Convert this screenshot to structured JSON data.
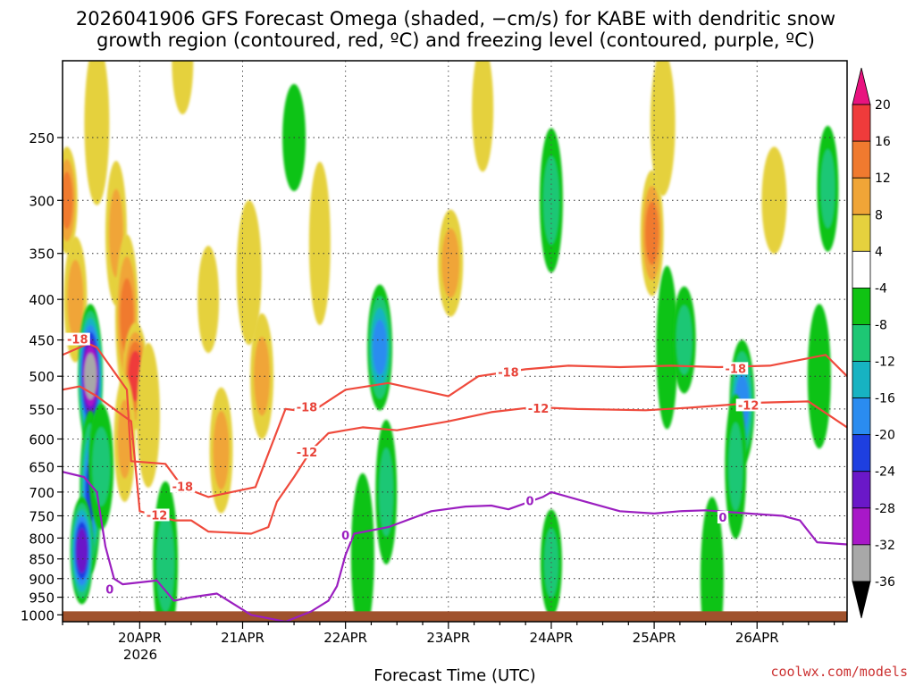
{
  "title_lines": [
    "2026041906 GFS Forecast Omega (shaded, −cm/s) for KABE with dendritic snow",
    "growth region (contoured, red, ºC) and freezing level (contoured, purple, ºC)"
  ],
  "credit": "coolwx.com/models",
  "chart_data": {
    "type": "heatmap",
    "title": "2026041906 GFS Forecast Omega (shaded, −cm/s) for KABE with dendritic snow growth region (contoured, red, ºC) and freezing level (contoured, purple, ºC)",
    "xlabel": "Forecast Time (UTC)",
    "ylabel": "",
    "x_tick_labels": [
      "20APR",
      "21APR",
      "22APR",
      "23APR",
      "24APR",
      "25APR",
      "26APR"
    ],
    "x_year_label": "2026",
    "x_tick_hours": [
      18,
      42,
      66,
      90,
      114,
      138,
      162
    ],
    "x_range_hours": [
      0,
      183
    ],
    "y_ticks_hpa": [
      250,
      300,
      350,
      400,
      450,
      500,
      550,
      600,
      650,
      700,
      750,
      800,
      850,
      900,
      950,
      1000
    ],
    "y_tick_labels": [
      "250",
      "300",
      "350",
      "400",
      "450",
      "500",
      "550",
      "600",
      "650",
      "700",
      "750",
      "800",
      "850",
      "900",
      "950",
      "1000"
    ],
    "y_range_hpa": [
      200,
      1020
    ],
    "colorbar": {
      "tick_labels": [
        "20",
        "16",
        "12",
        "8",
        "4",
        "-4",
        "-8",
        "-12",
        "-16",
        "-20",
        "-24",
        "-28",
        "-32",
        "-36"
      ],
      "bins": [
        {
          "range": ">20",
          "color": "#e8137f"
        },
        {
          "range": "16-20",
          "color": "#ef3b3b"
        },
        {
          "range": "12-16",
          "color": "#f07a2f"
        },
        {
          "range": "8-12",
          "color": "#f0a537"
        },
        {
          "range": "4-8",
          "color": "#e5d13e"
        },
        {
          "range": "-4-4",
          "color": "#ffffff"
        },
        {
          "range": "-8--4",
          "color": "#10c313"
        },
        {
          "range": "-12--8",
          "color": "#1dc774"
        },
        {
          "range": "-16--12",
          "color": "#17b3c2"
        },
        {
          "range": "-20--16",
          "color": "#2a8cf0"
        },
        {
          "range": "-24--20",
          "color": "#1e3fe0"
        },
        {
          "range": "-28--24",
          "color": "#6a18c8"
        },
        {
          "range": "-32--28",
          "color": "#a818c8"
        },
        {
          "range": "-36--32",
          "color": "#a8a8a8"
        },
        {
          "range": "<-36",
          "color": "#000000"
        }
      ]
    },
    "omega_features": [
      {
        "t": 1.0,
        "p": 300,
        "v": 16
      },
      {
        "t": 3.0,
        "p": 400,
        "v": 10
      },
      {
        "t": 6.5,
        "p": 500,
        "v": -36
      },
      {
        "t": 6.5,
        "p": 700,
        "v": -24
      },
      {
        "t": 4.5,
        "p": 830,
        "v": -28
      },
      {
        "t": 9.0,
        "p": 650,
        "v": -12
      },
      {
        "t": 12.5,
        "p": 330,
        "v": 10
      },
      {
        "t": 15.0,
        "p": 420,
        "v": 14
      },
      {
        "t": 17.0,
        "p": 500,
        "v": 20
      },
      {
        "t": 14.5,
        "p": 600,
        "v": 12
      },
      {
        "t": 20.0,
        "p": 560,
        "v": 8
      },
      {
        "t": 24.0,
        "p": 860,
        "v": -12
      },
      {
        "t": 34.0,
        "p": 400,
        "v": 6
      },
      {
        "t": 46.5,
        "p": 500,
        "v": 12
      },
      {
        "t": 43.5,
        "p": 370,
        "v": 8
      },
      {
        "t": 60.0,
        "p": 340,
        "v": 6
      },
      {
        "t": 54.0,
        "p": 250,
        "v": -8
      },
      {
        "t": 74.0,
        "p": 460,
        "v": -20
      },
      {
        "t": 75.5,
        "p": 700,
        "v": -12
      },
      {
        "t": 70.0,
        "p": 840,
        "v": -8
      },
      {
        "t": 90.5,
        "p": 360,
        "v": 10
      },
      {
        "t": 98.0,
        "p": 230,
        "v": 6
      },
      {
        "t": 114.0,
        "p": 300,
        "v": -12
      },
      {
        "t": 118.5,
        "p": 500,
        "v": 4
      },
      {
        "t": 114.0,
        "p": 860,
        "v": -12
      },
      {
        "t": 137.5,
        "p": 330,
        "v": 14
      },
      {
        "t": 140.0,
        "p": 240,
        "v": 6
      },
      {
        "t": 141.0,
        "p": 460,
        "v": -8
      },
      {
        "t": 145.0,
        "p": 450,
        "v": -12
      },
      {
        "t": 158.5,
        "p": 540,
        "v": -20
      },
      {
        "t": 157.0,
        "p": 650,
        "v": -12
      },
      {
        "t": 151.5,
        "p": 900,
        "v": -8
      },
      {
        "t": 166.0,
        "p": 300,
        "v": 6
      },
      {
        "t": 178.5,
        "p": 290,
        "v": -12
      },
      {
        "t": 176.5,
        "p": 500,
        "v": -8
      },
      {
        "t": 8.0,
        "p": 240,
        "v": 6
      },
      {
        "t": 28.0,
        "p": 200,
        "v": 8
      },
      {
        "t": 37.0,
        "p": 620,
        "v": 10
      }
    ],
    "contours": [
      {
        "name": "-18ºC",
        "color": "#ef4a3c",
        "points": [
          [
            0,
            470
          ],
          [
            6,
            455
          ],
          [
            8,
            460
          ],
          [
            15,
            520
          ],
          [
            16,
            640
          ],
          [
            24,
            645
          ],
          [
            28,
            690
          ],
          [
            34,
            710
          ],
          [
            45,
            690
          ],
          [
            52,
            550
          ],
          [
            58,
            555
          ],
          [
            66,
            520
          ],
          [
            76,
            510
          ],
          [
            90,
            530
          ],
          [
            97,
            500
          ],
          [
            108,
            490
          ],
          [
            118,
            485
          ],
          [
            130,
            487
          ],
          [
            142,
            485
          ],
          [
            153,
            487
          ],
          [
            165,
            485
          ],
          [
            178,
            470
          ],
          [
            183,
            500
          ]
        ]
      },
      {
        "name": "-12ºC",
        "color": "#ef4a3c",
        "points": [
          [
            0,
            520
          ],
          [
            4,
            515
          ],
          [
            8,
            530
          ],
          [
            14,
            560
          ],
          [
            16,
            570
          ],
          [
            18,
            740
          ],
          [
            26,
            760
          ],
          [
            30,
            760
          ],
          [
            34,
            785
          ],
          [
            44,
            790
          ],
          [
            48,
            775
          ],
          [
            50,
            720
          ],
          [
            54,
            670
          ],
          [
            58,
            620
          ],
          [
            62,
            590
          ],
          [
            70,
            580
          ],
          [
            78,
            585
          ],
          [
            90,
            570
          ],
          [
            100,
            555
          ],
          [
            110,
            547
          ],
          [
            120,
            550
          ],
          [
            136,
            552
          ],
          [
            146,
            548
          ],
          [
            152,
            545
          ],
          [
            162,
            540
          ],
          [
            174,
            538
          ],
          [
            183,
            580
          ]
        ]
      },
      {
        "name": "0ºC",
        "color": "#9b1fc0",
        "points": [
          [
            0,
            660
          ],
          [
            5,
            670
          ],
          [
            8,
            700
          ],
          [
            10,
            820
          ],
          [
            12,
            900
          ],
          [
            14,
            915
          ],
          [
            18,
            910
          ],
          [
            22,
            905
          ],
          [
            26,
            960
          ],
          [
            30,
            950
          ],
          [
            36,
            940
          ],
          [
            44,
            1000
          ],
          [
            48,
            1010
          ],
          [
            52,
            1020
          ],
          [
            58,
            990
          ],
          [
            62,
            960
          ],
          [
            64,
            920
          ],
          [
            66,
            840
          ],
          [
            68,
            790
          ],
          [
            76,
            775
          ],
          [
            86,
            740
          ],
          [
            94,
            730
          ],
          [
            100,
            728
          ],
          [
            104,
            736
          ],
          [
            112,
            710
          ],
          [
            114,
            700
          ],
          [
            122,
            720
          ],
          [
            130,
            740
          ],
          [
            138,
            745
          ],
          [
            144,
            740
          ],
          [
            150,
            738
          ],
          [
            160,
            745
          ],
          [
            168,
            750
          ],
          [
            172,
            760
          ],
          [
            176,
            810
          ],
          [
            183,
            815
          ]
        ]
      }
    ],
    "contour_labels": [
      {
        "text": "-18",
        "t": 3.5,
        "p": 450,
        "contour": 0
      },
      {
        "text": "-18",
        "t": 28.0,
        "p": 690,
        "contour": 0
      },
      {
        "text": "-18",
        "t": 57.0,
        "p": 548,
        "contour": 0
      },
      {
        "text": "-18",
        "t": 104.0,
        "p": 495,
        "contour": 0
      },
      {
        "text": "-18",
        "t": 157.0,
        "p": 490,
        "contour": 0
      },
      {
        "text": "-12",
        "t": 22.0,
        "p": 750,
        "contour": 1
      },
      {
        "text": "-12",
        "t": 57.0,
        "p": 625,
        "contour": 1
      },
      {
        "text": "-12",
        "t": 111.0,
        "p": 550,
        "contour": 1
      },
      {
        "text": "-12",
        "t": 160.0,
        "p": 545,
        "contour": 1
      },
      {
        "text": "0",
        "t": 11.0,
        "p": 930,
        "contour": 2
      },
      {
        "text": "0",
        "t": 66.0,
        "p": 795,
        "contour": 2
      },
      {
        "text": "0",
        "t": 109.0,
        "p": 720,
        "contour": 2
      },
      {
        "text": "0",
        "t": 154.0,
        "p": 755,
        "contour": 2
      }
    ],
    "ground_shading": {
      "label": "below-ground",
      "color": "#a0522d",
      "from_hpa": 1000
    }
  }
}
